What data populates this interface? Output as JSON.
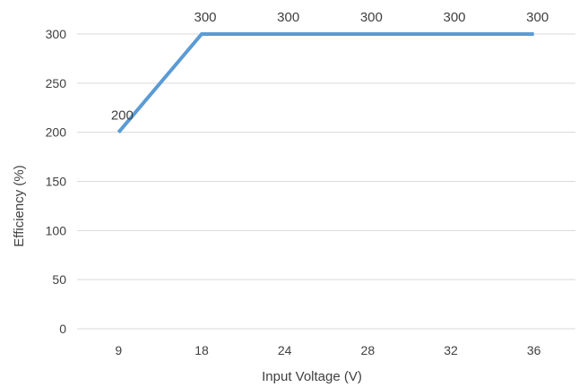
{
  "chart_data": {
    "type": "line",
    "categories": [
      "9",
      "18",
      "24",
      "28",
      "32",
      "36"
    ],
    "series": [
      {
        "values": [
          200,
          300,
          300,
          300,
          300,
          300
        ]
      }
    ],
    "data_labels": [
      "200",
      "300",
      "300",
      "300",
      "300",
      "300"
    ],
    "xlabel": "Input Voltage (V)",
    "ylabel": "Efficiency (%)",
    "ylim": [
      0,
      300
    ],
    "yticks": [
      "0",
      "50",
      "100",
      "150",
      "200",
      "250",
      "300"
    ],
    "grid": "horizontal",
    "legend": "none",
    "colors": {
      "line": "#5b9bd5",
      "grid": "#d9d9d9",
      "text": "#404040"
    }
  }
}
